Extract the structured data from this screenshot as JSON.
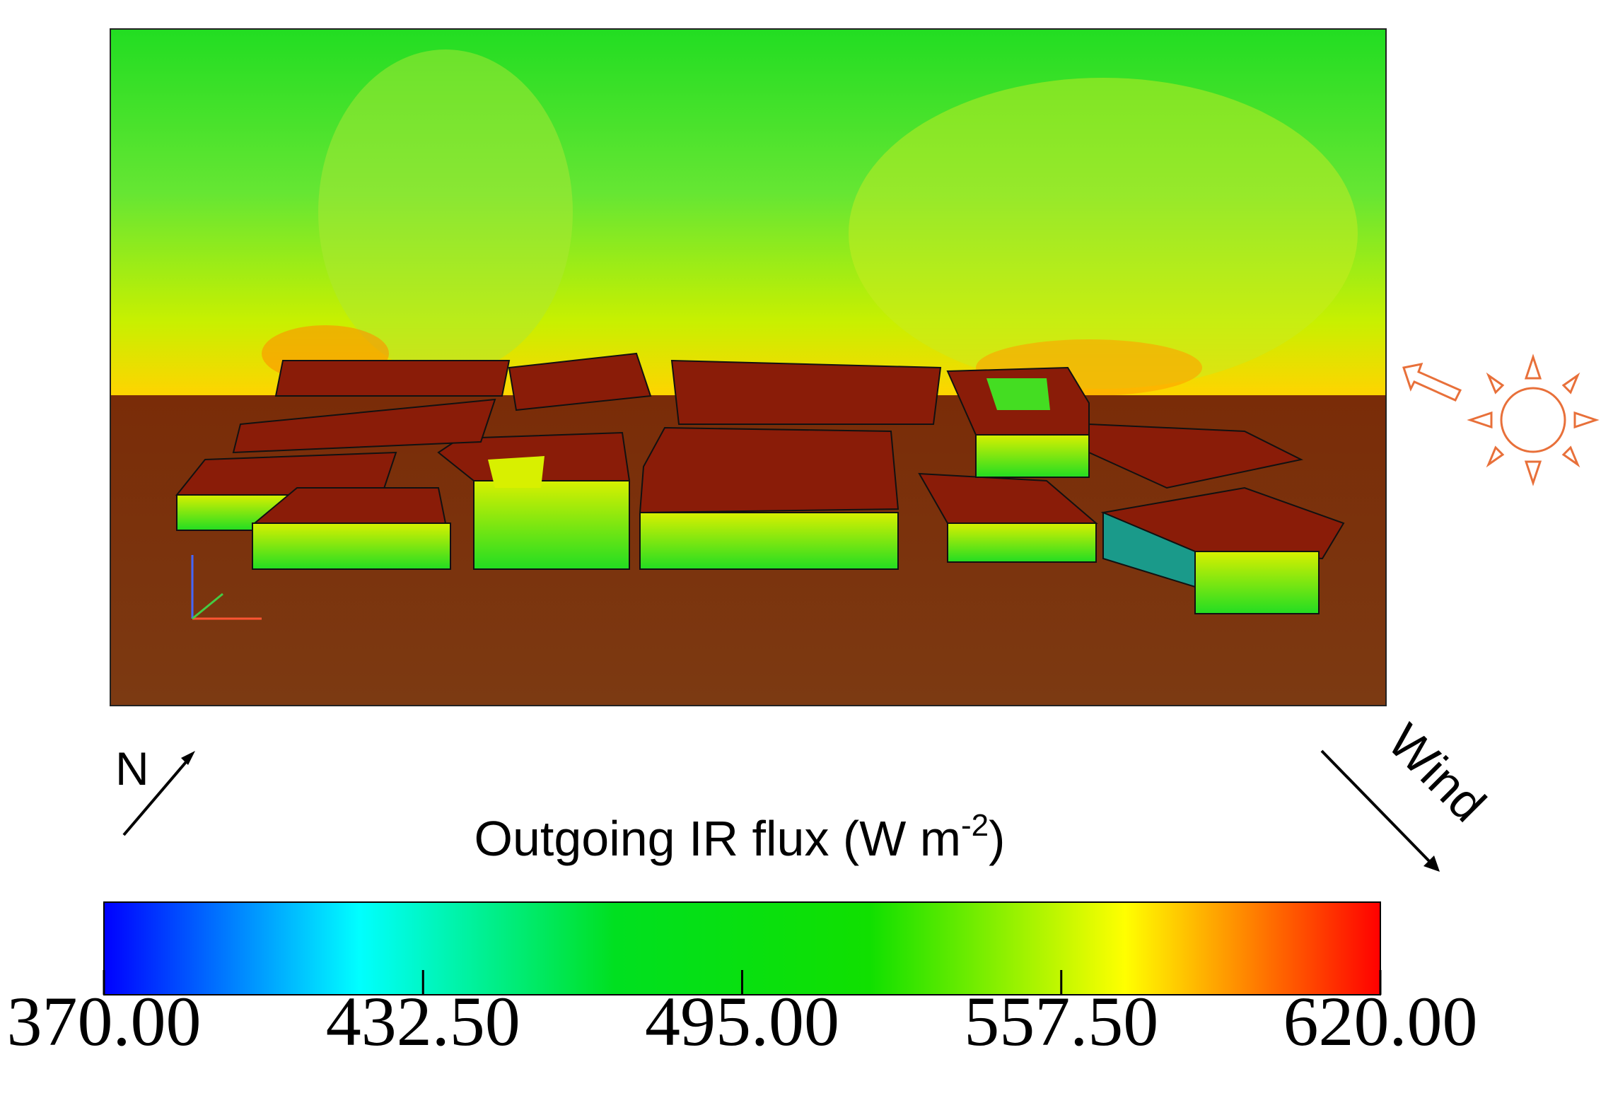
{
  "chart_data": {
    "type": "colorbar",
    "title": "Outgoing IR flux (W m",
    "title_superscript": "-2",
    "title_end": ")",
    "clim": [
      370,
      620
    ],
    "cticks": [
      {
        "value": 370,
        "label": "370.00"
      },
      {
        "value": 432.5,
        "label": "432.50"
      },
      {
        "value": 495,
        "label": "495.00"
      },
      {
        "value": 557.5,
        "label": "557.50"
      },
      {
        "value": 620,
        "label": "620.00"
      }
    ],
    "colors": [
      "#0000ff",
      "#00ffff",
      "#00e020",
      "#10e000",
      "#ffff00",
      "#ff0000"
    ],
    "north_label": "N",
    "wind_label": "Wind"
  }
}
